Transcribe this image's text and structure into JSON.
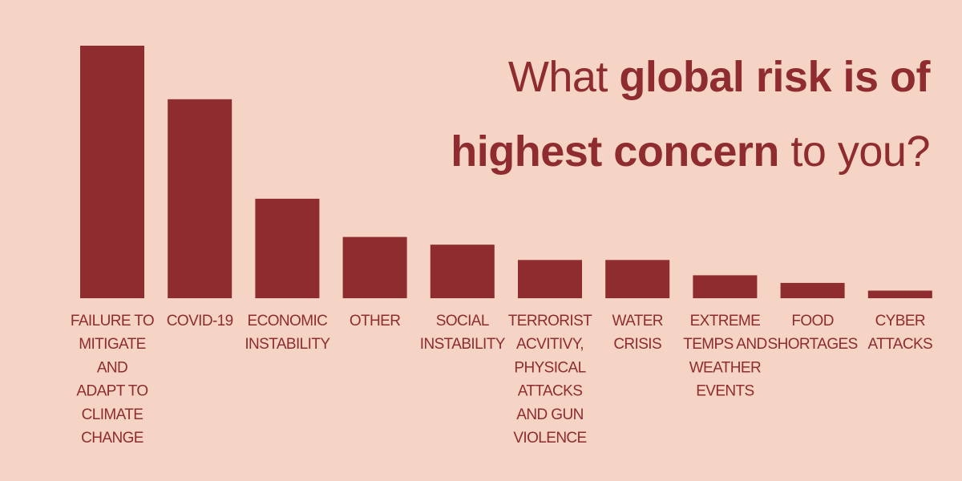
{
  "title": {
    "part1": "What ",
    "part2": "global risk is of highest concern",
    "part3": " to you?"
  },
  "colors": {
    "background": "#f5d3c5",
    "bar": "#8e2c2f",
    "text": "#8e2c2f"
  },
  "chart_data": {
    "type": "bar",
    "title": "What global risk is of highest concern to you?",
    "categories": [
      "FAILURE TO MITIGATE AND ADAPT TO CLIMATE CHANGE",
      "COVID-19",
      "ECONOMIC INSTABILITY",
      "OTHER",
      "SOCIAL INSTABILITY",
      "TERRORIST ACVITIVY, PHYSICAL ATTACKS AND GUN VIOLENCE",
      "WATER CRISIS",
      "EXTREME TEMPS AND WEATHER EVENTS",
      "FOOD SHORTAGES",
      "CYBER ATTACKS"
    ],
    "category_lines": [
      [
        "FAILURE TO",
        "MITIGATE",
        "AND",
        "ADAPT TO",
        "CLIMATE",
        "CHANGE"
      ],
      [
        "COVID-19"
      ],
      [
        "ECONOMIC",
        "INSTABILITY"
      ],
      [
        "OTHER"
      ],
      [
        "SOCIAL",
        "INSTABILITY"
      ],
      [
        "TERRORIST",
        "ACVITIVY,",
        "PHYSICAL",
        "ATTACKS",
        "AND GUN",
        "VIOLENCE"
      ],
      [
        "WATER",
        "CRISIS"
      ],
      [
        "EXTREME",
        "TEMPS AND",
        "WEATHER",
        "EVENTS"
      ],
      [
        "FOOD",
        "SHORTAGES"
      ],
      [
        "CYBER",
        "ATTACKS"
      ]
    ],
    "values": [
      33,
      26,
      13,
      8,
      7,
      5,
      5,
      3,
      2,
      1
    ],
    "ylim": [
      0,
      33
    ],
    "grid": false,
    "legend": "none"
  }
}
